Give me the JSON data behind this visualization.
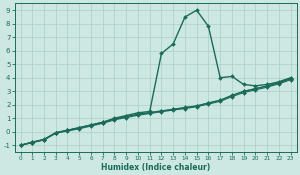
{
  "xlabel": "Humidex (Indice chaleur)",
  "bg_color": "#cde8e2",
  "grid_color": "#aacfc8",
  "line_color": "#1a6b5a",
  "xlim": [
    -0.5,
    23.5
  ],
  "ylim": [
    -1.5,
    9.5
  ],
  "xticks": [
    0,
    1,
    2,
    3,
    4,
    5,
    6,
    7,
    8,
    9,
    10,
    11,
    12,
    13,
    14,
    15,
    16,
    17,
    18,
    19,
    20,
    21,
    22,
    23
  ],
  "yticks": [
    -1,
    0,
    1,
    2,
    3,
    4,
    5,
    6,
    7,
    8,
    9
  ],
  "lines": [
    {
      "x": [
        0,
        1,
        2,
        3,
        4,
        5,
        6,
        7,
        8,
        9,
        10,
        11,
        12,
        13,
        14,
        15,
        16,
        17,
        18,
        19,
        20,
        21,
        22,
        23
      ],
      "y": [
        -1.0,
        -0.8,
        -0.6,
        -0.1,
        0.1,
        0.3,
        0.5,
        0.7,
        1.0,
        1.2,
        1.4,
        1.5,
        5.8,
        6.5,
        8.5,
        9.0,
        7.8,
        4.0,
        4.1,
        3.5,
        3.4,
        3.5,
        3.7,
        4.0
      ],
      "marker": "D",
      "markersize": 2.0,
      "linewidth": 1.0
    },
    {
      "x": [
        0,
        1,
        2,
        3,
        4,
        5,
        6,
        7,
        8,
        9,
        10,
        11,
        12,
        13,
        14,
        15,
        16,
        17,
        18,
        19,
        20,
        21,
        22,
        23
      ],
      "y": [
        -1.0,
        -0.8,
        -0.6,
        -0.1,
        0.05,
        0.22,
        0.42,
        0.62,
        0.88,
        1.05,
        1.22,
        1.35,
        1.48,
        1.6,
        1.72,
        1.85,
        2.05,
        2.25,
        2.6,
        2.9,
        3.1,
        3.3,
        3.55,
        3.85
      ],
      "marker": "D",
      "markersize": 2.0,
      "linewidth": 0.8
    },
    {
      "x": [
        0,
        1,
        2,
        3,
        4,
        5,
        6,
        7,
        8,
        9,
        10,
        11,
        12,
        13,
        14,
        15,
        16,
        17,
        18,
        19,
        20,
        21,
        22,
        23
      ],
      "y": [
        -1.0,
        -0.78,
        -0.58,
        -0.08,
        0.1,
        0.28,
        0.48,
        0.68,
        0.94,
        1.1,
        1.28,
        1.4,
        1.53,
        1.65,
        1.78,
        1.9,
        2.12,
        2.32,
        2.68,
        2.98,
        3.18,
        3.38,
        3.62,
        3.92
      ],
      "marker": "D",
      "markersize": 2.0,
      "linewidth": 0.8
    },
    {
      "x": [
        0,
        1,
        2,
        3,
        4,
        5,
        6,
        7,
        8,
        9,
        10,
        11,
        12,
        13,
        14,
        15,
        16,
        17,
        18,
        19,
        20,
        21,
        22,
        23
      ],
      "y": [
        -1.0,
        -0.76,
        -0.56,
        -0.06,
        0.12,
        0.3,
        0.5,
        0.7,
        0.96,
        1.12,
        1.3,
        1.42,
        1.55,
        1.67,
        1.8,
        1.92,
        2.14,
        2.34,
        2.7,
        3.0,
        3.2,
        3.4,
        3.64,
        3.94
      ],
      "marker": "D",
      "markersize": 2.0,
      "linewidth": 0.8
    }
  ]
}
